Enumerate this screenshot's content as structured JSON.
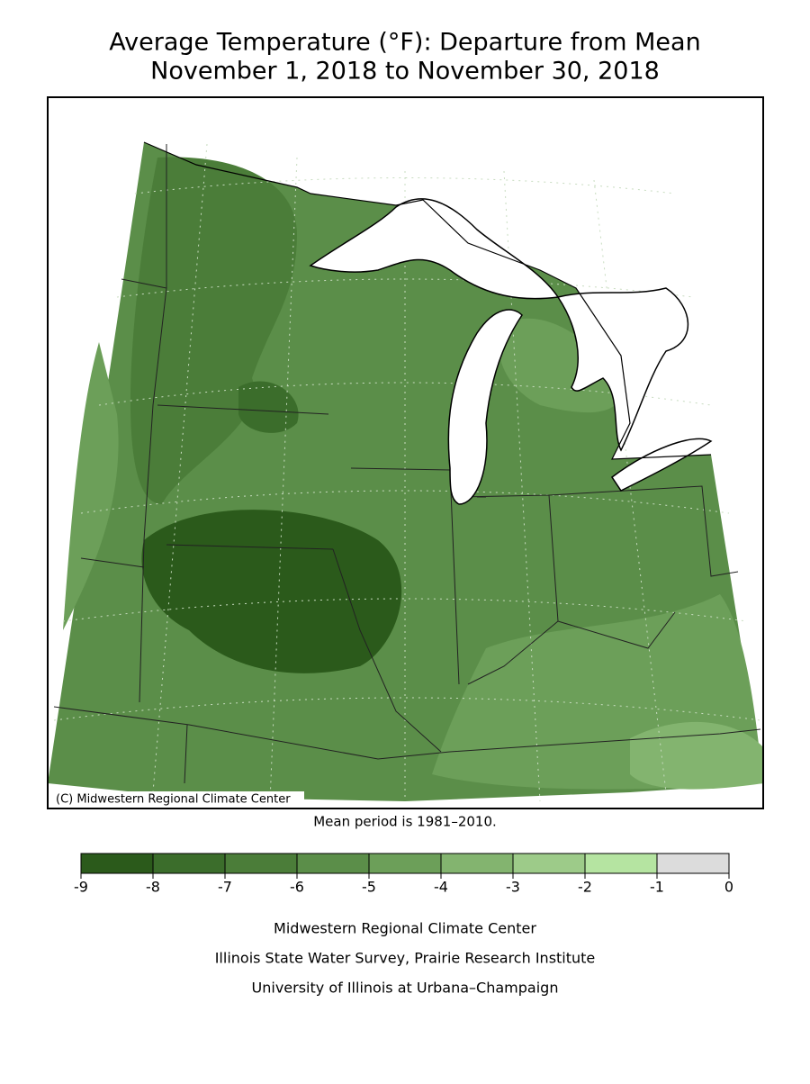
{
  "title": [
    "Average Temperature (°F): Departure from Mean",
    "November 1, 2018 to November 30, 2018"
  ],
  "copyright": "(C) Midwestern Regional Climate Center",
  "note": "Mean period is 1981–2010.",
  "legend": {
    "ticks": [
      -9,
      -8,
      -7,
      -6,
      -5,
      -4,
      -3,
      -2,
      -1,
      0
    ],
    "colors": [
      "#2b5a1b",
      "#3b6d2b",
      "#4b7d39",
      "#5b8e49",
      "#6c9f59",
      "#83b46f",
      "#9dcb89",
      "#b5e4a1",
      "#dcdcdc"
    ]
  },
  "credits": [
    "Midwestern Regional Climate Center",
    "Illinois State Water Survey, Prairie Research Institute",
    "University of Illinois at Urbana–Champaign"
  ]
}
